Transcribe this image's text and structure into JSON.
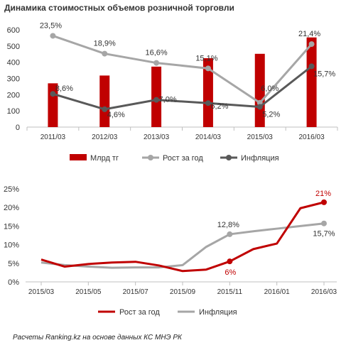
{
  "title": "Динамика стоимостных  объемов розничной торговли",
  "footnote": "Расчеты Ranking.kz на основе данных КС МНЭ РК",
  "colors": {
    "red": "#c00000",
    "light_gray": "#a6a6a6",
    "dark_gray": "#595959",
    "axis": "#bfbfbf",
    "tick": "#333333"
  },
  "chart_data": [
    {
      "type": "bar",
      "categories": [
        "2011/03",
        "2012/03",
        "2013/03",
        "2014/03",
        "2015/03",
        "2016/03"
      ],
      "ylim": [
        0,
        600
      ],
      "yticks": [
        0,
        100,
        200,
        300,
        400,
        500,
        600
      ],
      "grid": false,
      "legend_position": "bottom",
      "series": [
        {
          "name": "Млрд тг",
          "kind": "bar",
          "color": "#c00000",
          "values": [
            270,
            318,
            373,
            425,
            452,
            553
          ]
        },
        {
          "name": "Рост за год",
          "kind": "line",
          "color": "#a6a6a6",
          "values": [
            563,
            453,
            396,
            362,
            150,
            512
          ],
          "labels": [
            "23,5%",
            "18,9%",
            "16,6%",
            "15,1%",
            "6,0%",
            "21,4%"
          ]
        },
        {
          "name": "Инфляция",
          "kind": "line",
          "color": "#595959",
          "values": [
            205,
            110,
            168,
            148,
            125,
            375
          ],
          "labels": [
            "8,6%",
            "4,6%",
            "7,0%",
            "6,2%",
            "5,2%",
            "15,7%"
          ]
        }
      ]
    },
    {
      "type": "line",
      "x_ticks": [
        "2015/03",
        "2015/05",
        "2015/07",
        "2015/09",
        "2015/11",
        "2016/01",
        "2016/03"
      ],
      "ylim": [
        0,
        25
      ],
      "yticks": [
        "0%",
        "5%",
        "10%",
        "15%",
        "20%",
        "25%"
      ],
      "grid": false,
      "legend_position": "bottom",
      "series": [
        {
          "name": "Рост за год",
          "color": "#c00000",
          "values": [
            6.0,
            4.1,
            4.8,
            5.2,
            5.4,
            4.4,
            2.9,
            3.3,
            5.5,
            8.8,
            10.3,
            19.8,
            21.4
          ]
        },
        {
          "name": "Инфляция",
          "color": "#a6a6a6",
          "values": [
            5.2,
            4.5,
            4.1,
            3.8,
            3.9,
            3.9,
            4.5,
            9.4,
            12.8,
            13.6,
            14.3,
            15.0,
            15.7
          ]
        }
      ],
      "annotations": [
        {
          "text": "21%",
          "series": "Рост за год",
          "index": 12
        },
        {
          "text": "6%",
          "series": "Рост за год",
          "index": 8
        },
        {
          "text": "12,8%",
          "series": "Инфляция",
          "index": 8
        },
        {
          "text": "15,7%",
          "series": "Инфляция",
          "index": 12
        }
      ]
    }
  ]
}
